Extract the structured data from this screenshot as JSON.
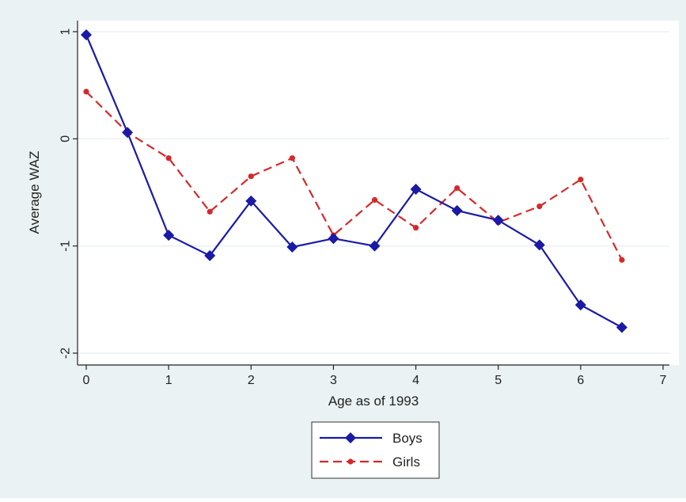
{
  "chart_data": {
    "type": "line",
    "title": "",
    "xlabel": "Age as of 1993",
    "ylabel": "Average WAZ",
    "xlim": [
      0,
      7
    ],
    "ylim": [
      -2,
      1
    ],
    "x_ticks": [
      "0",
      "1",
      "2",
      "3",
      "4",
      "5",
      "6",
      "7"
    ],
    "y_ticks": [
      "-2",
      "-1",
      "0",
      "1"
    ],
    "grid": true,
    "legend_position": "bottom-center",
    "x": [
      0,
      0.5,
      1,
      1.5,
      2,
      2.5,
      3,
      3.5,
      4,
      4.5,
      5,
      5.5,
      6,
      6.5
    ],
    "series": [
      {
        "name": "Boys",
        "color": "#1a1aa6",
        "line_style": "solid",
        "marker": "diamond",
        "values": [
          0.97,
          0.06,
          -0.9,
          -1.09,
          -0.58,
          -1.01,
          -0.93,
          -1.0,
          -0.47,
          -0.67,
          -0.76,
          -0.99,
          -1.55,
          -1.76
        ]
      },
      {
        "name": "Girls",
        "color": "#d42a2a",
        "line_style": "dashed",
        "marker": "circle",
        "values": [
          0.44,
          0.06,
          -0.18,
          -0.68,
          -0.35,
          -0.18,
          -0.9,
          -0.57,
          -0.83,
          -0.46,
          -0.78,
          -0.63,
          -0.38,
          -1.13
        ]
      }
    ],
    "colors": {
      "background": "#eaf2f3",
      "plot_background": "#ffffff",
      "axis": "#222222"
    }
  }
}
